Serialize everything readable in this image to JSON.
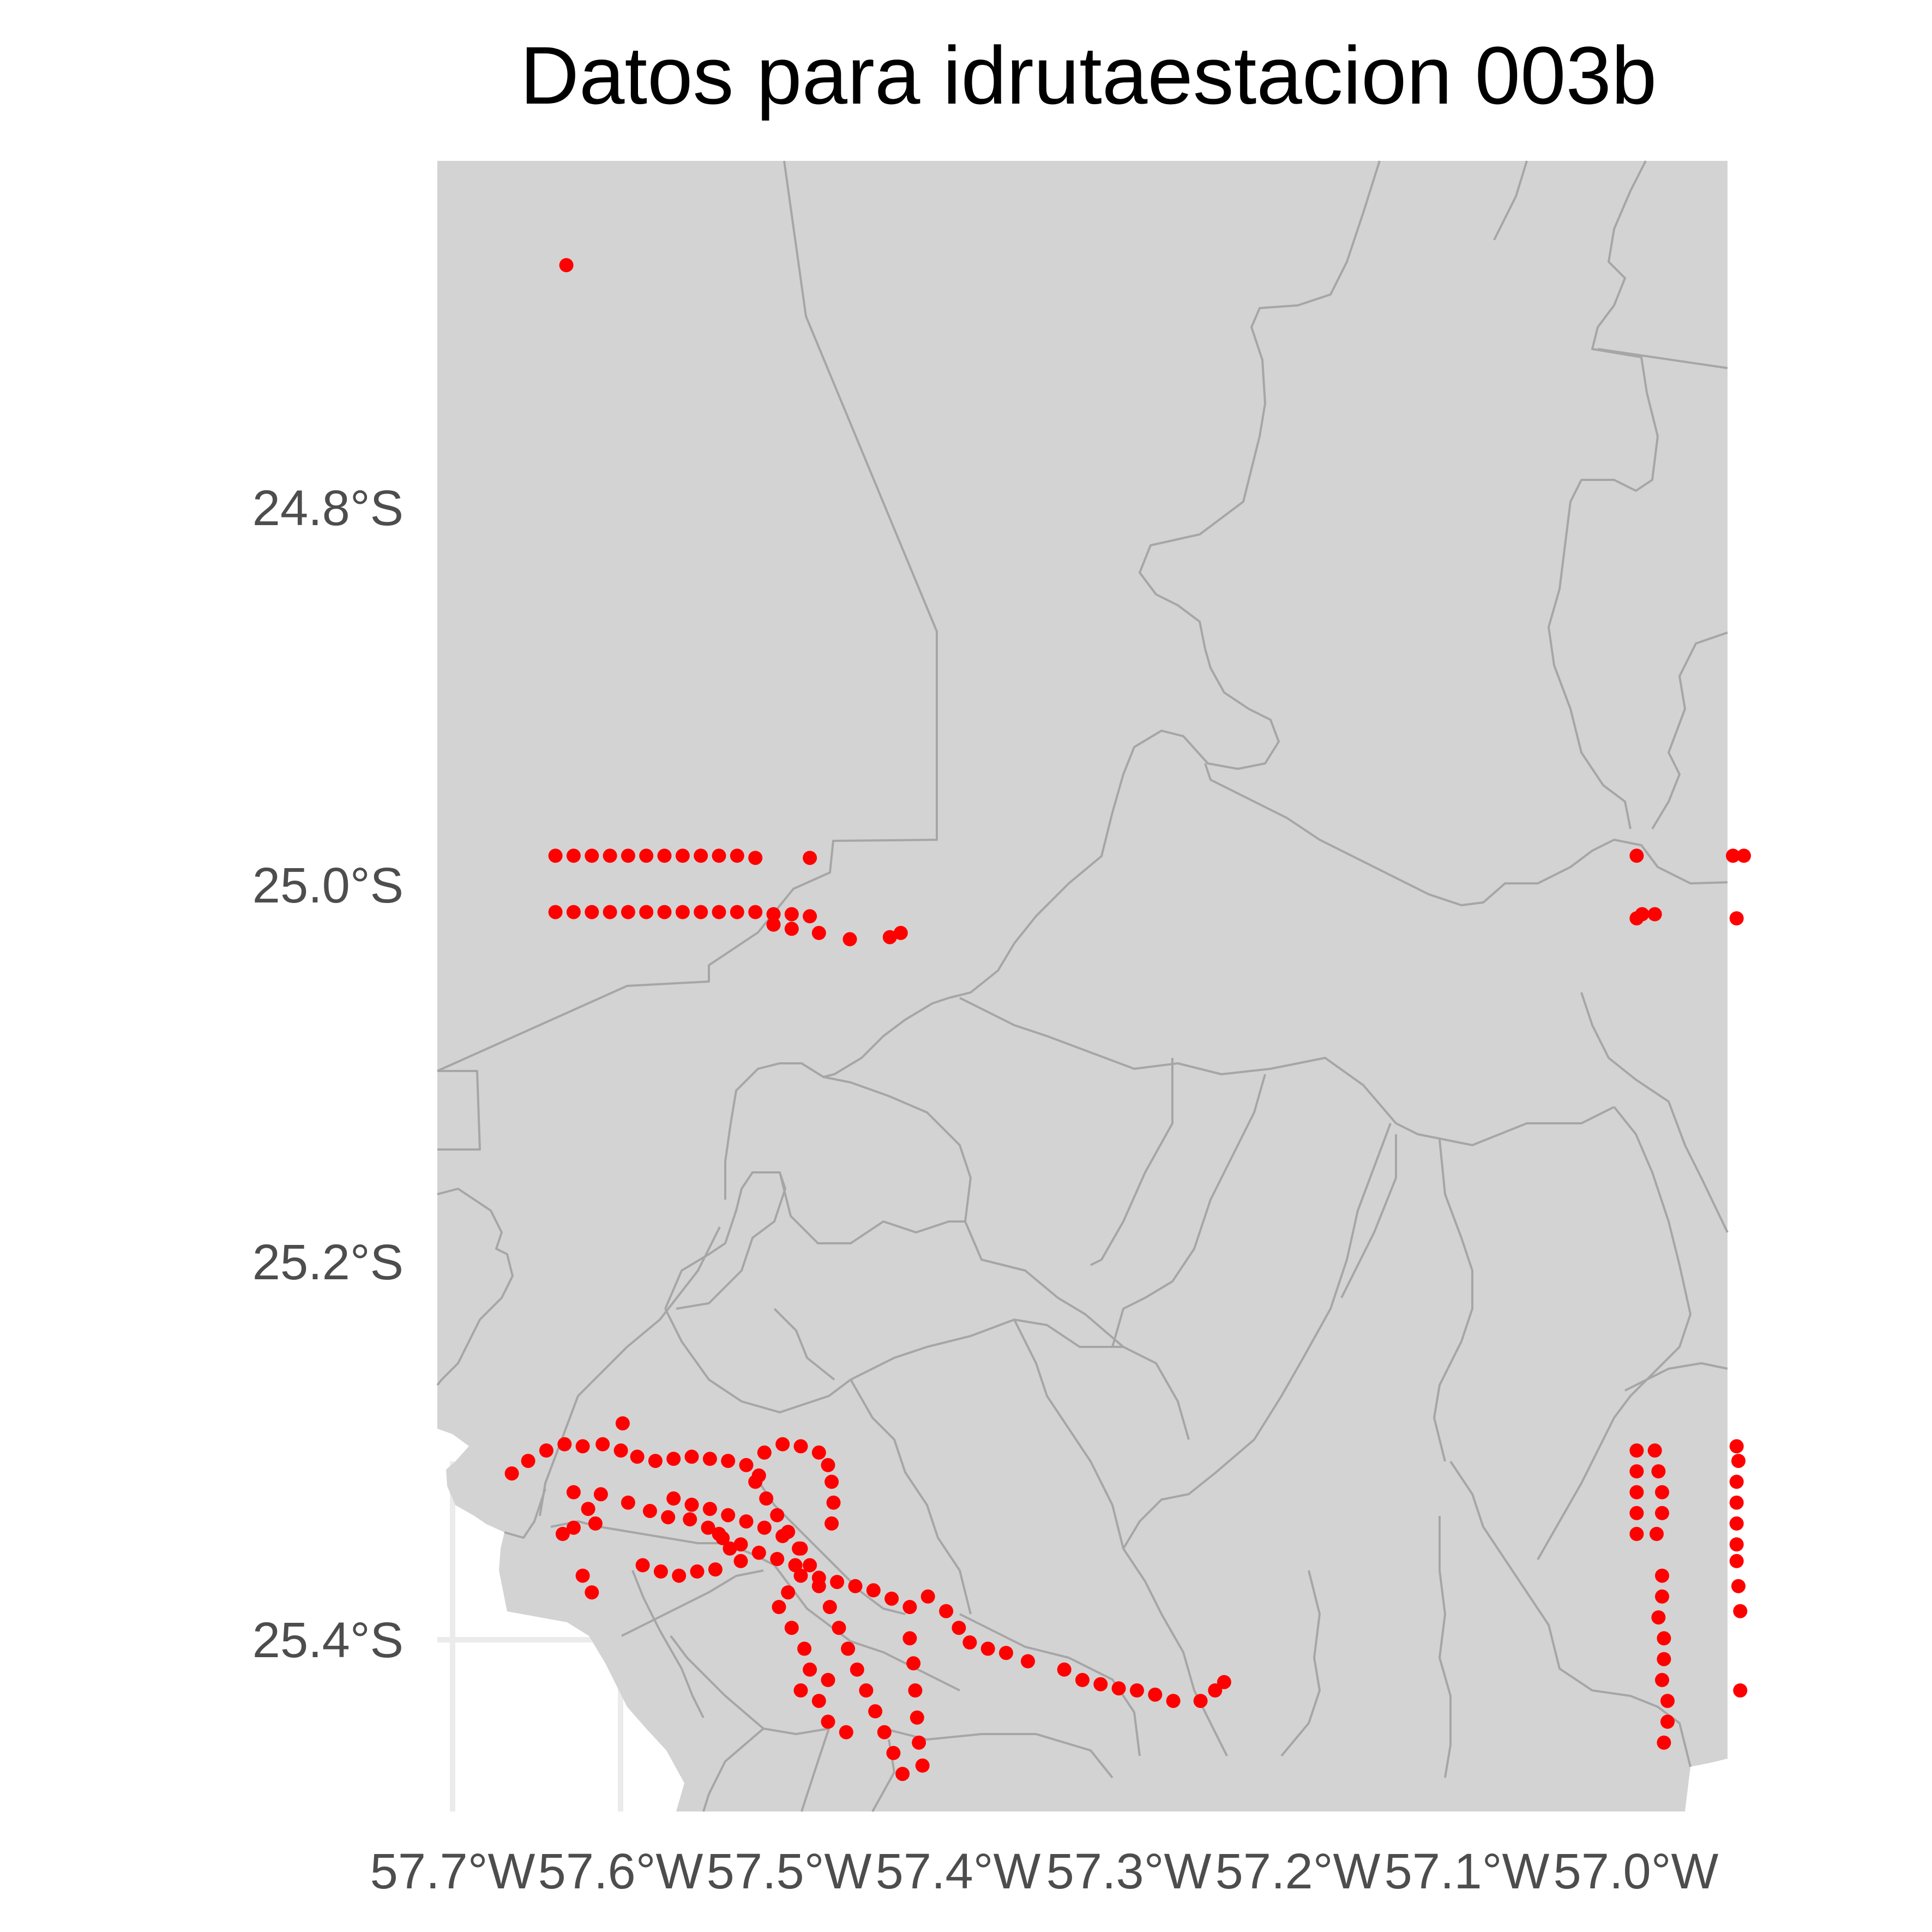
{
  "title": "Datos para idrutaestacion 003b",
  "colors": {
    "panel": "#d3d3d3",
    "boundary": "#a6a6a6",
    "points": "#ff0000",
    "grid": "#ebebeb",
    "tick_text": "#4d4d4d"
  },
  "chart_data": {
    "type": "scatter",
    "title": "Datos para idrutaestacion 003b",
    "xlabel": "",
    "ylabel": "",
    "xlim": [
      -57.705,
      -56.995
    ],
    "ylim": [
      -25.458,
      -24.667
    ],
    "x_ticks": [
      -57.7,
      -57.6,
      -57.5,
      -57.4,
      -57.3,
      -57.2,
      -57.1,
      -57.0
    ],
    "x_tick_labels": [
      "57.7°W",
      "57.6°W",
      "57.5°W",
      "57.4°W",
      "57.3°W",
      "57.2°W",
      "57.1°W",
      "57.0°W"
    ],
    "y_ticks": [
      -24.8,
      -25.0,
      -25.2,
      -25.4
    ],
    "y_tick_labels": [
      "24.8°S",
      "25.0°S",
      "25.2°S",
      "25.4°S"
    ],
    "grid": true,
    "background": "administrative boundary map (Paraguay districts)",
    "points": [
      [
        -57.634,
        -24.717
      ],
      [
        -57.64,
        -25.0
      ],
      [
        -57.63,
        -25.0
      ],
      [
        -57.62,
        -25.0
      ],
      [
        -57.61,
        -25.0
      ],
      [
        -57.6,
        -25.0
      ],
      [
        -57.59,
        -25.0
      ],
      [
        -57.58,
        -25.0
      ],
      [
        -57.57,
        -25.0
      ],
      [
        -57.56,
        -25.0
      ],
      [
        -57.55,
        -25.0
      ],
      [
        -57.54,
        -25.0
      ],
      [
        -57.53,
        -25.001
      ],
      [
        -57.5,
        -25.001
      ],
      [
        -57.64,
        -25.027
      ],
      [
        -57.63,
        -25.027
      ],
      [
        -57.62,
        -25.027
      ],
      [
        -57.61,
        -25.027
      ],
      [
        -57.6,
        -25.027
      ],
      [
        -57.59,
        -25.027
      ],
      [
        -57.58,
        -25.027
      ],
      [
        -57.57,
        -25.027
      ],
      [
        -57.56,
        -25.027
      ],
      [
        -57.55,
        -25.027
      ],
      [
        -57.54,
        -25.027
      ],
      [
        -57.53,
        -25.027
      ],
      [
        -57.52,
        -25.028
      ],
      [
        -57.51,
        -25.028
      ],
      [
        -57.5,
        -25.029
      ],
      [
        -57.52,
        -25.033
      ],
      [
        -57.51,
        -25.035
      ],
      [
        -57.495,
        -25.037
      ],
      [
        -57.478,
        -25.04
      ],
      [
        -57.456,
        -25.039
      ],
      [
        -57.45,
        -25.037
      ],
      [
        -57.045,
        -25.0
      ],
      [
        -57.045,
        -25.03
      ],
      [
        -57.042,
        -25.028
      ],
      [
        -57.035,
        -25.028
      ],
      [
        -56.992,
        -25.0
      ],
      [
        -56.986,
        -25.0
      ],
      [
        -56.99,
        -25.03
      ],
      [
        -57.664,
        -25.296
      ],
      [
        -57.655,
        -25.29
      ],
      [
        -57.645,
        -25.285
      ],
      [
        -57.635,
        -25.282
      ],
      [
        -57.625,
        -25.283
      ],
      [
        -57.614,
        -25.282
      ],
      [
        -57.604,
        -25.285
      ],
      [
        -57.595,
        -25.288
      ],
      [
        -57.585,
        -25.29
      ],
      [
        -57.575,
        -25.289
      ],
      [
        -57.565,
        -25.288
      ],
      [
        -57.555,
        -25.289
      ],
      [
        -57.545,
        -25.29
      ],
      [
        -57.535,
        -25.292
      ],
      [
        -57.528,
        -25.297
      ],
      [
        -57.603,
        -25.272
      ],
      [
        -57.525,
        -25.286
      ],
      [
        -57.515,
        -25.282
      ],
      [
        -57.505,
        -25.283
      ],
      [
        -57.495,
        -25.286
      ],
      [
        -57.49,
        -25.292
      ],
      [
        -57.488,
        -25.3
      ],
      [
        -57.487,
        -25.31
      ],
      [
        -57.488,
        -25.32
      ],
      [
        -57.63,
        -25.305
      ],
      [
        -57.622,
        -25.313
      ],
      [
        -57.618,
        -25.32
      ],
      [
        -57.63,
        -25.322
      ],
      [
        -57.636,
        -25.325
      ],
      [
        -57.615,
        -25.306
      ],
      [
        -57.6,
        -25.31
      ],
      [
        -57.588,
        -25.314
      ],
      [
        -57.578,
        -25.317
      ],
      [
        -57.566,
        -25.318
      ],
      [
        -57.556,
        -25.322
      ],
      [
        -57.548,
        -25.327
      ],
      [
        -57.538,
        -25.33
      ],
      [
        -57.528,
        -25.334
      ],
      [
        -57.518,
        -25.337
      ],
      [
        -57.508,
        -25.34
      ],
      [
        -57.575,
        -25.308
      ],
      [
        -57.565,
        -25.311
      ],
      [
        -57.555,
        -25.313
      ],
      [
        -57.545,
        -25.316
      ],
      [
        -57.535,
        -25.319
      ],
      [
        -57.525,
        -25.322
      ],
      [
        -57.515,
        -25.326
      ],
      [
        -57.505,
        -25.332
      ],
      [
        -57.53,
        -25.3
      ],
      [
        -57.524,
        -25.308
      ],
      [
        -57.518,
        -25.316
      ],
      [
        -57.512,
        -25.324
      ],
      [
        -57.506,
        -25.332
      ],
      [
        -57.5,
        -25.34
      ],
      [
        -57.495,
        -25.35
      ],
      [
        -57.489,
        -25.36
      ],
      [
        -57.484,
        -25.37
      ],
      [
        -57.479,
        -25.38
      ],
      [
        -57.474,
        -25.39
      ],
      [
        -57.469,
        -25.4
      ],
      [
        -57.464,
        -25.41
      ],
      [
        -57.459,
        -25.42
      ],
      [
        -57.454,
        -25.43
      ],
      [
        -57.449,
        -25.44
      ],
      [
        -57.592,
        -25.34
      ],
      [
        -57.582,
        -25.343
      ],
      [
        -57.572,
        -25.345
      ],
      [
        -57.562,
        -25.343
      ],
      [
        -57.552,
        -25.342
      ],
      [
        -57.625,
        -25.345
      ],
      [
        -57.62,
        -25.353
      ],
      [
        -57.55,
        -25.325
      ],
      [
        -57.544,
        -25.332
      ],
      [
        -57.538,
        -25.338
      ],
      [
        -57.505,
        -25.345
      ],
      [
        -57.512,
        -25.353
      ],
      [
        -57.517,
        -25.36
      ],
      [
        -57.51,
        -25.37
      ],
      [
        -57.503,
        -25.38
      ],
      [
        -57.5,
        -25.39
      ],
      [
        -57.505,
        -25.4
      ],
      [
        -57.49,
        -25.395
      ],
      [
        -57.495,
        -25.405
      ],
      [
        -57.49,
        -25.415
      ],
      [
        -57.48,
        -25.42
      ],
      [
        -57.495,
        -25.346
      ],
      [
        -57.485,
        -25.348
      ],
      [
        -57.475,
        -25.35
      ],
      [
        -57.465,
        -25.352
      ],
      [
        -57.455,
        -25.356
      ],
      [
        -57.445,
        -25.36
      ],
      [
        -57.445,
        -25.375
      ],
      [
        -57.443,
        -25.387
      ],
      [
        -57.442,
        -25.4
      ],
      [
        -57.441,
        -25.413
      ],
      [
        -57.44,
        -25.425
      ],
      [
        -57.438,
        -25.436
      ],
      [
        -57.435,
        -25.355
      ],
      [
        -57.425,
        -25.362
      ],
      [
        -57.418,
        -25.37
      ],
      [
        -57.412,
        -25.377
      ],
      [
        -57.402,
        -25.38
      ],
      [
        -57.392,
        -25.382
      ],
      [
        -57.38,
        -25.386
      ],
      [
        -57.36,
        -25.39
      ],
      [
        -57.35,
        -25.395
      ],
      [
        -57.34,
        -25.397
      ],
      [
        -57.33,
        -25.399
      ],
      [
        -57.32,
        -25.4
      ],
      [
        -57.31,
        -25.402
      ],
      [
        -57.3,
        -25.405
      ],
      [
        -57.285,
        -25.405
      ],
      [
        -57.277,
        -25.4
      ],
      [
        -57.272,
        -25.396
      ],
      [
        -57.045,
        -25.285
      ],
      [
        -57.045,
        -25.295
      ],
      [
        -57.045,
        -25.305
      ],
      [
        -57.045,
        -25.315
      ],
      [
        -57.045,
        -25.325
      ],
      [
        -57.035,
        -25.285
      ],
      [
        -57.033,
        -25.295
      ],
      [
        -57.031,
        -25.305
      ],
      [
        -57.031,
        -25.315
      ],
      [
        -57.034,
        -25.325
      ],
      [
        -57.031,
        -25.345
      ],
      [
        -57.031,
        -25.355
      ],
      [
        -57.033,
        -25.365
      ],
      [
        -57.03,
        -25.375
      ],
      [
        -57.03,
        -25.385
      ],
      [
        -57.031,
        -25.395
      ],
      [
        -57.028,
        -25.405
      ],
      [
        -57.028,
        -25.415
      ],
      [
        -57.03,
        -25.425
      ],
      [
        -56.99,
        -25.283
      ],
      [
        -56.989,
        -25.29
      ],
      [
        -56.99,
        -25.3
      ],
      [
        -56.99,
        -25.31
      ],
      [
        -56.99,
        -25.32
      ],
      [
        -56.99,
        -25.33
      ],
      [
        -56.99,
        -25.338
      ],
      [
        -56.989,
        -25.35
      ],
      [
        -56.988,
        -25.362
      ],
      [
        -56.988,
        -25.4
      ]
    ]
  }
}
